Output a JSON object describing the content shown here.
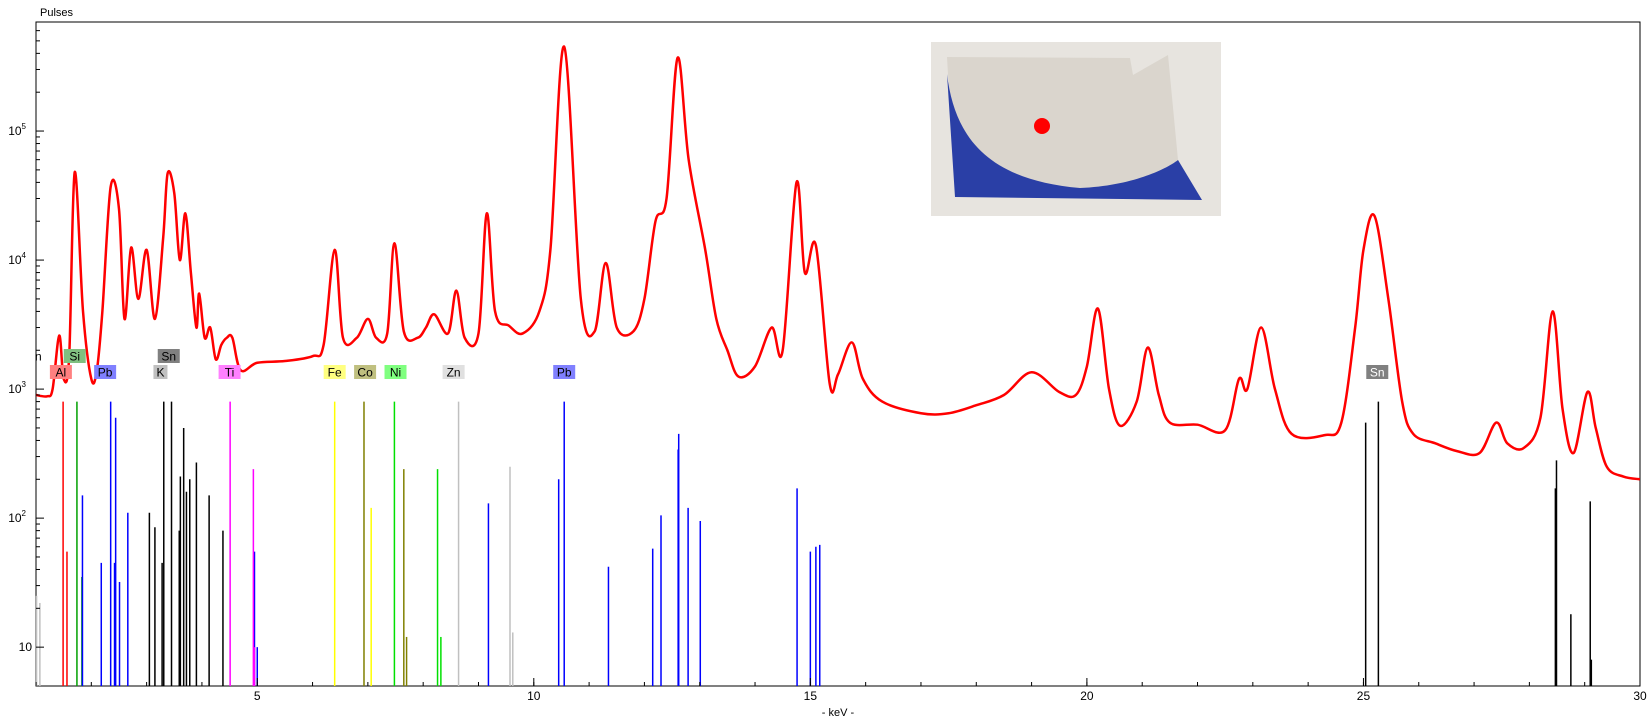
{
  "chart_data": {
    "type": "line",
    "title": "",
    "ylabel": "Pulses",
    "xlabel": "- keV -",
    "x_range": [
      1,
      30
    ],
    "y_range": [
      5,
      700000
    ],
    "y_scale": "log",
    "grid": false,
    "x_ticks": [
      {
        "value": 5,
        "label": "5"
      },
      {
        "value": 10,
        "label": "10"
      },
      {
        "value": 15,
        "label": "15"
      },
      {
        "value": 20,
        "label": "20"
      },
      {
        "value": 25,
        "label": "25"
      },
      {
        "value": 30,
        "label": "30"
      }
    ],
    "y_ticks": [
      {
        "value": 10,
        "label": "10"
      },
      {
        "value": 100,
        "label": "10",
        "sup": "2"
      },
      {
        "value": 1000,
        "label": "10",
        "sup": "3"
      },
      {
        "value": 10000,
        "label": "10",
        "sup": "4"
      },
      {
        "value": 100000,
        "label": "10",
        "sup": "5"
      }
    ],
    "spectrum": {
      "color": "#ff0000",
      "points": [
        [
          1.0,
          900
        ],
        [
          1.2,
          880
        ],
        [
          1.3,
          1000
        ],
        [
          1.42,
          2600
        ],
        [
          1.5,
          1200
        ],
        [
          1.6,
          1800
        ],
        [
          1.7,
          48000
        ],
        [
          1.85,
          4000
        ],
        [
          2.0,
          1200
        ],
        [
          2.1,
          1400
        ],
        [
          2.2,
          4000
        ],
        [
          2.35,
          37000
        ],
        [
          2.5,
          25000
        ],
        [
          2.6,
          3500
        ],
        [
          2.72,
          12500
        ],
        [
          2.85,
          5000
        ],
        [
          3.0,
          12000
        ],
        [
          3.15,
          3500
        ],
        [
          3.3,
          15000
        ],
        [
          3.38,
          47000
        ],
        [
          3.5,
          33000
        ],
        [
          3.6,
          10000
        ],
        [
          3.7,
          23000
        ],
        [
          3.8,
          8000
        ],
        [
          3.9,
          3000
        ],
        [
          3.95,
          5500
        ],
        [
          4.05,
          2500
        ],
        [
          4.15,
          3000
        ],
        [
          4.25,
          1700
        ],
        [
          4.35,
          2200
        ],
        [
          4.45,
          2500
        ],
        [
          4.55,
          2500
        ],
        [
          4.7,
          1400
        ],
        [
          5.0,
          1600
        ],
        [
          5.5,
          1650
        ],
        [
          6.0,
          1800
        ],
        [
          6.2,
          2200
        ],
        [
          6.4,
          12000
        ],
        [
          6.55,
          2500
        ],
        [
          6.8,
          2500
        ],
        [
          7.0,
          3500
        ],
        [
          7.15,
          2500
        ],
        [
          7.35,
          2700
        ],
        [
          7.48,
          13500
        ],
        [
          7.65,
          2800
        ],
        [
          7.9,
          2500
        ],
        [
          8.05,
          3000
        ],
        [
          8.2,
          3800
        ],
        [
          8.45,
          2700
        ],
        [
          8.6,
          5800
        ],
        [
          8.75,
          2500
        ],
        [
          9.0,
          2700
        ],
        [
          9.15,
          23000
        ],
        [
          9.3,
          4000
        ],
        [
          9.55,
          3100
        ],
        [
          9.8,
          2700
        ],
        [
          10.1,
          4000
        ],
        [
          10.3,
          12000
        ],
        [
          10.55,
          450000
        ],
        [
          10.85,
          5000
        ],
        [
          11.1,
          2800
        ],
        [
          11.3,
          9500
        ],
        [
          11.5,
          3000
        ],
        [
          11.8,
          2800
        ],
        [
          12.0,
          5000
        ],
        [
          12.2,
          20000
        ],
        [
          12.4,
          30000
        ],
        [
          12.6,
          370000
        ],
        [
          12.8,
          60000
        ],
        [
          13.1,
          12000
        ],
        [
          13.3,
          3500
        ],
        [
          13.5,
          2000
        ],
        [
          13.7,
          1250
        ],
        [
          14.0,
          1500
        ],
        [
          14.3,
          3000
        ],
        [
          14.5,
          2000
        ],
        [
          14.75,
          40000
        ],
        [
          14.9,
          8000
        ],
        [
          15.1,
          13000
        ],
        [
          15.35,
          1100
        ],
        [
          15.5,
          1300
        ],
        [
          15.75,
          2300
        ],
        [
          15.95,
          1200
        ],
        [
          16.3,
          800
        ],
        [
          17.0,
          650
        ],
        [
          17.5,
          650
        ],
        [
          18.0,
          750
        ],
        [
          18.5,
          900
        ],
        [
          19.0,
          1350
        ],
        [
          19.5,
          950
        ],
        [
          19.8,
          900
        ],
        [
          20.0,
          1500
        ],
        [
          20.2,
          4200
        ],
        [
          20.4,
          1000
        ],
        [
          20.6,
          520
        ],
        [
          20.9,
          800
        ],
        [
          21.1,
          2100
        ],
        [
          21.3,
          900
        ],
        [
          21.5,
          550
        ],
        [
          22.0,
          530
        ],
        [
          22.5,
          480
        ],
        [
          22.75,
          1200
        ],
        [
          22.9,
          1000
        ],
        [
          23.15,
          3000
        ],
        [
          23.4,
          1000
        ],
        [
          23.7,
          450
        ],
        [
          24.3,
          440
        ],
        [
          24.6,
          550
        ],
        [
          24.85,
          3000
        ],
        [
          25.0,
          12000
        ],
        [
          25.2,
          22000
        ],
        [
          25.45,
          5000
        ],
        [
          25.7,
          800
        ],
        [
          25.9,
          450
        ],
        [
          26.3,
          380
        ],
        [
          26.7,
          330
        ],
        [
          27.1,
          320
        ],
        [
          27.4,
          550
        ],
        [
          27.6,
          380
        ],
        [
          27.9,
          350
        ],
        [
          28.2,
          600
        ],
        [
          28.42,
          4000
        ],
        [
          28.6,
          700
        ],
        [
          28.8,
          320
        ],
        [
          29.05,
          950
        ],
        [
          29.2,
          500
        ],
        [
          29.4,
          250
        ],
        [
          29.7,
          210
        ],
        [
          30.0,
          200
        ]
      ]
    },
    "element_lines": [
      {
        "el": "Al",
        "color": "#ff0000",
        "lines": [
          [
            1.49,
            800
          ],
          [
            1.56,
            55
          ]
        ]
      },
      {
        "el": "Si",
        "color": "#00a000",
        "lines": [
          [
            1.74,
            800
          ],
          [
            1.83,
            35
          ]
        ]
      },
      {
        "el": "Pb",
        "color": "#0000ff",
        "lines": [
          [
            1.84,
            150
          ],
          [
            2.18,
            45
          ],
          [
            2.35,
            800
          ],
          [
            2.42,
            45
          ],
          [
            2.44,
            600
          ],
          [
            2.51,
            32
          ],
          [
            2.66,
            110
          ],
          [
            4.95,
            55
          ],
          [
            5.0,
            10
          ],
          [
            9.18,
            130
          ],
          [
            10.45,
            200
          ],
          [
            10.55,
            800
          ],
          [
            11.35,
            42
          ],
          [
            12.15,
            58
          ],
          [
            12.3,
            105
          ],
          [
            12.61,
            340
          ],
          [
            12.62,
            450
          ],
          [
            12.79,
            120
          ],
          [
            13.01,
            95
          ],
          [
            14.76,
            170
          ],
          [
            15.0,
            55
          ],
          [
            15.1,
            60
          ],
          [
            15.17,
            62
          ]
        ]
      },
      {
        "el": "K",
        "color": "#000000",
        "lines": [
          [
            3.31,
            800
          ],
          [
            3.59,
            80
          ]
        ]
      },
      {
        "el": "Sn",
        "color": "#000000",
        "lines": [
          [
            3.05,
            110
          ],
          [
            3.15,
            85
          ],
          [
            3.28,
            45
          ],
          [
            3.45,
            800
          ],
          [
            3.61,
            210
          ],
          [
            3.67,
            500
          ],
          [
            3.72,
            160
          ],
          [
            3.78,
            200
          ],
          [
            3.9,
            270
          ],
          [
            4.13,
            150
          ],
          [
            4.38,
            80
          ],
          [
            25.04,
            550
          ],
          [
            25.27,
            800
          ],
          [
            28.47,
            170
          ],
          [
            28.49,
            280
          ],
          [
            28.75,
            18
          ],
          [
            29.1,
            135
          ],
          [
            29.12,
            8
          ]
        ]
      },
      {
        "el": "Ti",
        "color": "#ff00ff",
        "lines": [
          [
            4.51,
            800
          ],
          [
            4.93,
            240
          ],
          [
            4.95,
            10
          ]
        ]
      },
      {
        "el": "Fe",
        "color": "#ffff00",
        "lines": [
          [
            6.4,
            800
          ],
          [
            7.06,
            120
          ]
        ]
      },
      {
        "el": "Co",
        "color": "#808000",
        "lines": [
          [
            6.93,
            800
          ],
          [
            7.65,
            240
          ],
          [
            7.7,
            12
          ]
        ]
      },
      {
        "el": "Ni",
        "color": "#00e000",
        "lines": [
          [
            7.48,
            800
          ],
          [
            8.26,
            240
          ],
          [
            8.32,
            12
          ]
        ]
      },
      {
        "el": "Zn",
        "color": "#c0c0c0",
        "lines": [
          [
            1.01,
            25
          ],
          [
            1.07,
            22
          ],
          [
            8.64,
            800
          ],
          [
            9.57,
            250
          ],
          [
            9.62,
            13
          ]
        ]
      }
    ],
    "element_labels": [
      {
        "text": "Al",
        "x": 1.45,
        "row": "lower",
        "bg": "#ff8080",
        "fg": "#000000"
      },
      {
        "text": "Si",
        "x": 1.7,
        "row": "upper",
        "bg": "#80c080",
        "fg": "#000000"
      },
      {
        "text": "Pb",
        "x": 2.25,
        "row": "lower",
        "bg": "#8080ff",
        "fg": "#000000"
      },
      {
        "text": "Sn",
        "x": 3.4,
        "row": "upper",
        "bg": "#808080",
        "fg": "#000000"
      },
      {
        "text": "K",
        "x": 3.25,
        "row": "lower",
        "bg": "#c0c0c0",
        "fg": "#000000"
      },
      {
        "text": "Ti",
        "x": 4.5,
        "row": "lower",
        "bg": "#ff80ff",
        "fg": "#000000"
      },
      {
        "text": "Fe",
        "x": 6.4,
        "row": "lower",
        "bg": "#ffff80",
        "fg": "#000000"
      },
      {
        "text": "Co",
        "x": 6.95,
        "row": "lower",
        "bg": "#c0c080",
        "fg": "#000000"
      },
      {
        "text": "Ni",
        "x": 7.5,
        "row": "lower",
        "bg": "#80ff80",
        "fg": "#000000"
      },
      {
        "text": "Zn",
        "x": 8.55,
        "row": "lower",
        "bg": "#e0e0e0",
        "fg": "#000000"
      },
      {
        "text": "Pb",
        "x": 10.55,
        "row": "lower",
        "bg": "#8080ff",
        "fg": "#000000"
      },
      {
        "text": "Sn",
        "x": 25.25,
        "row": "lower",
        "bg": "#808080",
        "fg": "#ffffff"
      }
    ],
    "clipped_label": {
      "text": "n",
      "row": "upper"
    }
  },
  "inset_photo": {
    "description_icon": "porcelain-sherd-photo",
    "background": "#e7e4df",
    "sherd_color": "#dad5cd",
    "glaze_color": "#2a3fa6",
    "marker_color": "#ff0000"
  }
}
